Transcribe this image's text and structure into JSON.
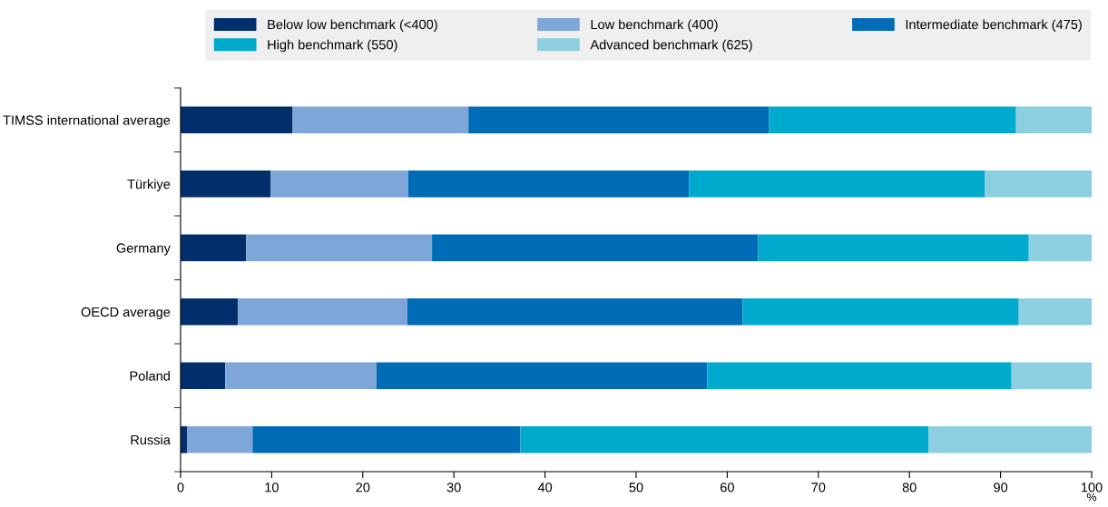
{
  "chart_data": {
    "type": "bar",
    "orientation": "horizontal",
    "stacked": true,
    "xlabel": "%",
    "categories": [
      "TIMSS international average",
      "Türkiye",
      "Germany",
      "OECD average",
      "Poland",
      "Russia"
    ],
    "series": [
      {
        "name": "Below low benchmark (<400)",
        "color": "#002f6c",
        "values": [
          12.3,
          9.9,
          7.2,
          6.3,
          4.9,
          0.7
        ]
      },
      {
        "name": "Low benchmark (400)",
        "color": "#7fa6d9",
        "values": [
          19.3,
          15.1,
          20.4,
          18.6,
          16.6,
          7.2
        ]
      },
      {
        "name": "Intermediate benchmark (475)",
        "color": "#006bb6",
        "values": [
          33.0,
          30.8,
          35.8,
          36.8,
          36.3,
          29.4
        ]
      },
      {
        "name": "High benchmark (550)",
        "color": "#00aacc",
        "values": [
          27.1,
          32.5,
          29.7,
          30.3,
          33.4,
          44.8
        ]
      },
      {
        "name": "Advanced benchmark (625)",
        "color": "#8ccfe1",
        "values": [
          8.3,
          11.7,
          6.9,
          8.0,
          8.8,
          17.9
        ]
      }
    ],
    "xlim": [
      0,
      100
    ],
    "xticks": [
      0,
      10,
      20,
      30,
      40,
      50,
      60,
      70,
      80,
      90,
      100
    ],
    "grid": false,
    "legend": "top"
  }
}
